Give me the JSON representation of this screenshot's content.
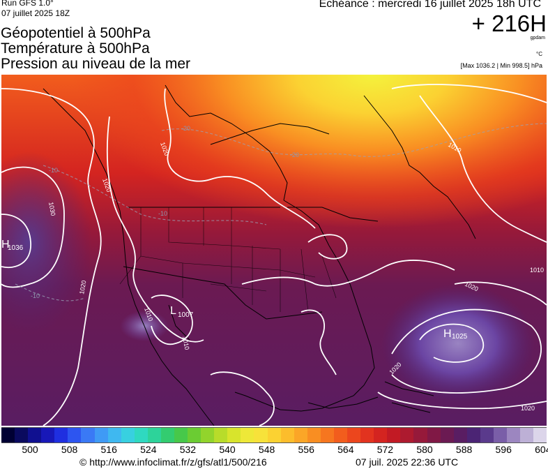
{
  "header": {
    "run_line": "Run GFS 1.0°",
    "run_date": "07 juillet 2025 18Z",
    "title_lines": [
      "Géopotentiel à 500hPa",
      "Température à 500hPa",
      "Pression au niveau de la mer"
    ],
    "valid_time": "Echéance : mercredi 16 juillet 2025 18h UTC",
    "forecast_hour": "+ 216H",
    "units_geopotential": "gpdam",
    "units_temperature": "°C",
    "pressure_range": "[Max 1036.2 | Min 998.5] hPa"
  },
  "map": {
    "isobar_labels": [
      "1030",
      "1020",
      "1020",
      "1020",
      "1010",
      "1010",
      "1010",
      "1020",
      "1020",
      "1020",
      "1010"
    ],
    "temperature_labels": [
      "-20",
      "-20",
      "-10",
      "-10",
      "-10"
    ],
    "centers": [
      {
        "type": "H",
        "value": "1036"
      },
      {
        "type": "L",
        "value": "1007"
      },
      {
        "type": "H",
        "value": "1025"
      }
    ]
  },
  "colorbar": {
    "colors": [
      "#000033",
      "#0a0a5e",
      "#101090",
      "#1818b8",
      "#1f2fe0",
      "#2d55f0",
      "#3a79f5",
      "#3f9af5",
      "#3fb8f0",
      "#38d0e0",
      "#2fd9c0",
      "#2dd39a",
      "#33cc70",
      "#47c84a",
      "#6bcc33",
      "#92d42c",
      "#b8dc2a",
      "#d8e42c",
      "#eee838",
      "#f7e23a",
      "#fbd232",
      "#fcbd2c",
      "#fba627",
      "#f98e22",
      "#f6761f",
      "#f25d1d",
      "#ec461d",
      "#e2331f",
      "#d42420",
      "#c21a24",
      "#ad1a2f",
      "#96193a",
      "#801845",
      "#6b1a52",
      "#591d62",
      "#4b2474",
      "#5a3a8c",
      "#7a5ea8",
      "#9c86c0",
      "#bdb0d6",
      "#dcd5ea"
    ],
    "tick_labels": [
      "500",
      "508",
      "516",
      "524",
      "532",
      "540",
      "548",
      "556",
      "564",
      "572",
      "580",
      "588",
      "596",
      "604"
    ]
  },
  "footer": {
    "credit": "© http://www.infoclimat.fr/z/gfs/atl1/500/216",
    "generated": "07 juil. 2025 22:36 UTC"
  }
}
